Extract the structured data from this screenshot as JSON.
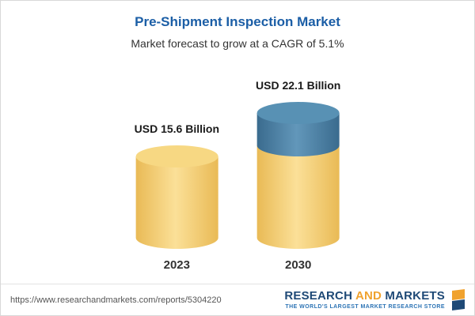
{
  "chart_data": {
    "type": "bar",
    "subtype": "3d-cylinder-stacked",
    "title": "Pre-Shipment Inspection Market",
    "subtitle": "Market forecast to grow at a CAGR of 5.1%",
    "cagr_percent": 5.1,
    "unit": "USD Billion",
    "categories": [
      "2023",
      "2030"
    ],
    "values": [
      15.6,
      22.1
    ],
    "value_labels": [
      "USD 15.6 Billion",
      "USD 22.1 Billion"
    ],
    "series": [
      {
        "values": [
          15.6,
          15.6
        ],
        "style": {
          "edge": "#e9ba55",
          "mid": "#fbe098",
          "cap": "#f7d883"
        }
      },
      {
        "values": [
          0,
          6.5
        ],
        "style": {
          "edge": "#3a6b8e",
          "mid": "#6297ba",
          "cap": "#5891b4"
        }
      }
    ],
    "ylim": [
      0,
      22.1
    ],
    "grid": false,
    "legend": "none"
  },
  "footer": {
    "url": "https://www.researchandmarkets.com/reports/5304220",
    "logo_part1": "RESEARCH",
    "logo_part2": "AND",
    "logo_part3": "MARKETS",
    "logo_tagline": "THE WORLD'S LARGEST MARKET RESEARCH STORE"
  },
  "colors": {
    "title_blue": "#1b5ea6",
    "subtitle_gray": "#333333",
    "logo_navy": "#1e4976",
    "logo_orange": "#f0a22e",
    "tagline_blue": "#2d74b5"
  }
}
